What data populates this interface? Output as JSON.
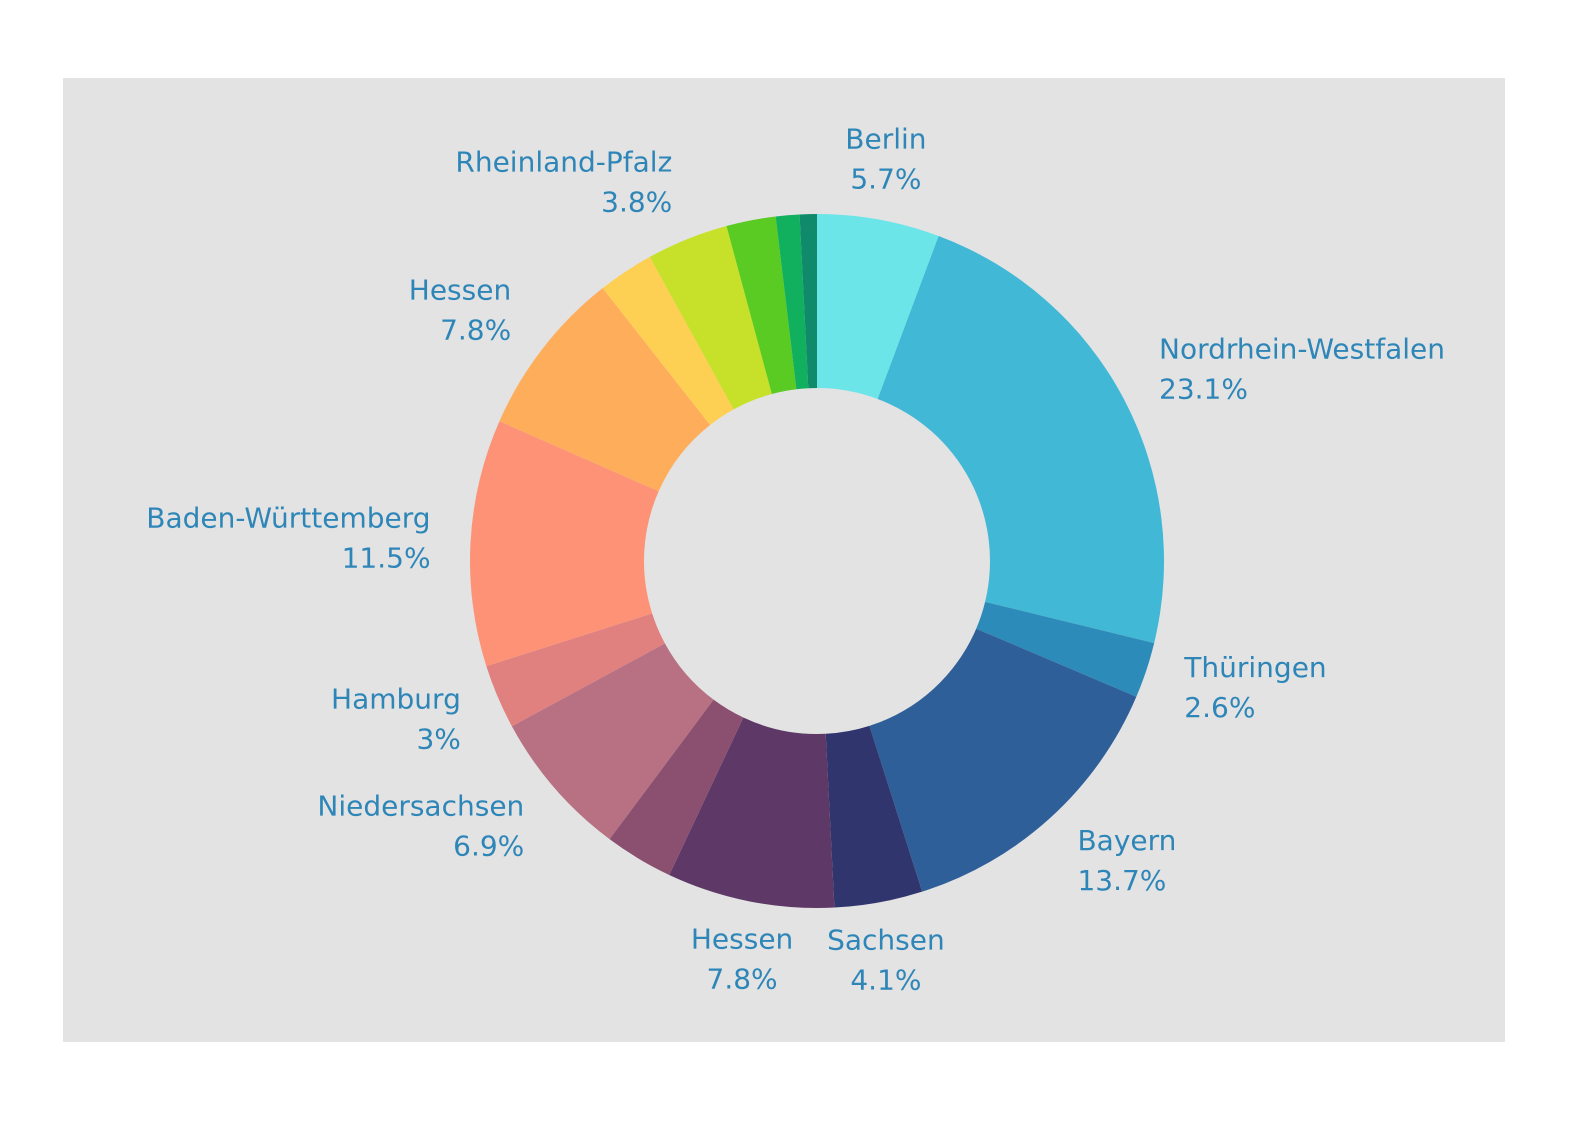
{
  "chart_data": {
    "type": "donut",
    "categories": [
      "Berlin",
      "Nordrhein-Westfalen",
      "Thüringen",
      "Bayern",
      "Sachsen",
      "Hessen",
      null,
      "Niedersachsen",
      "Hamburg",
      "Baden-Württemberg",
      "Hessen",
      null,
      "Rheinland-Pfalz",
      null,
      null,
      null
    ],
    "values": [
      5.7,
      23.1,
      2.6,
      13.7,
      4.1,
      7.8,
      3.2,
      6.9,
      3,
      11.5,
      7.8,
      2.6,
      3.8,
      2.3,
      1.1,
      0.8
    ],
    "value_labels": [
      "5.7%",
      "23.1%",
      "2.6%",
      "13.7%",
      "4.1%",
      "7.8%",
      null,
      "6.9%",
      "3%",
      "11.5%",
      "7.8%",
      null,
      "3.8%",
      null,
      null,
      null
    ],
    "colors": [
      "#6ce5e8",
      "#41b8d5",
      "#2d8bba",
      "#2f5f98",
      "#31356e",
      "#5e3967",
      "#8b5070",
      "#b87083",
      "#e0807f",
      "#fd9276",
      "#fead5b",
      "#fdd053",
      "#c7e02a",
      "#5acb22",
      "#10b05f",
      "#0f8a6a"
    ]
  }
}
